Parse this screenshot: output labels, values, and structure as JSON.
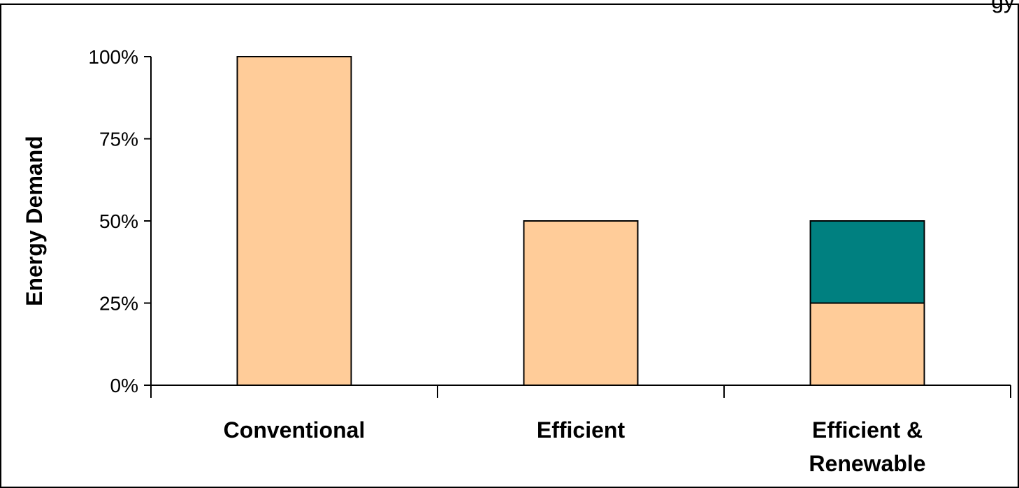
{
  "chart_data": {
    "type": "bar",
    "stacked": true,
    "categories": [
      "Conventional",
      "Efficient",
      "Efficient & Renewable"
    ],
    "category_label_lines": [
      [
        "Conventional"
      ],
      [
        "Efficient"
      ],
      [
        "Efficient &",
        "Renewable"
      ]
    ],
    "series": [
      {
        "values": [
          100,
          50,
          25
        ],
        "color": "#FFCC99"
      },
      {
        "values": [
          0,
          0,
          25
        ],
        "color": "#008080"
      }
    ],
    "ylabel": "Energy Demand",
    "ylim": [
      0,
      100
    ],
    "yticks": [
      0,
      25,
      50,
      75,
      100
    ],
    "ytick_labels": [
      "0%",
      "25%",
      "50%",
      "75%",
      "100%"
    ],
    "clipped_title_fragment": "gy",
    "grid": false,
    "legend": "none"
  }
}
